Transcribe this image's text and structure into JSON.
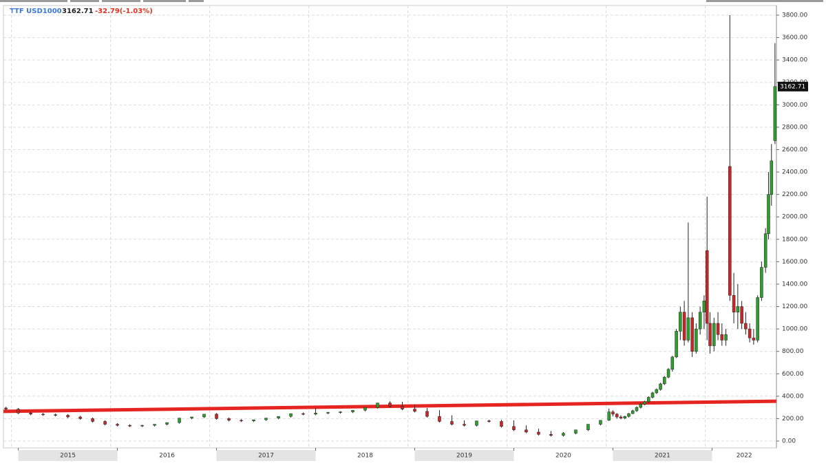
{
  "chart_data": {
    "type": "candlestick",
    "symbol": "TTF USD1000",
    "change": "-32.79(-1.03%)",
    "xlim": [
      2014.85,
      2022.65
    ],
    "xticks": [
      2015,
      2016,
      2017,
      2018,
      2019,
      2020,
      2021,
      2022
    ],
    "ylim": [
      0,
      3800
    ],
    "yticks": [
      {
        "value": 0,
        "label": "0.00"
      },
      {
        "value": 200,
        "label": "200.00"
      },
      {
        "value": 400,
        "label": "400.00"
      },
      {
        "value": 600,
        "label": "600.00"
      },
      {
        "value": 800,
        "label": "800.00"
      },
      {
        "value": 1000,
        "label": "1000.00"
      },
      {
        "value": 1200,
        "label": "1200.00"
      },
      {
        "value": 1400,
        "label": "1400.00"
      },
      {
        "value": 1600,
        "label": "1600.00"
      },
      {
        "value": 1800,
        "label": "1800.00"
      },
      {
        "value": 2000,
        "label": "2000.00"
      },
      {
        "value": 2200,
        "label": "2200.00"
      },
      {
        "value": 2400,
        "label": "2400.00"
      },
      {
        "value": 2600,
        "label": "2600.00"
      },
      {
        "value": 2800,
        "label": "2800.00"
      },
      {
        "value": 3000,
        "label": "3000.00"
      },
      {
        "value": 3200,
        "label": "3200.00"
      },
      {
        "value": 3400,
        "label": "3400.00"
      },
      {
        "value": 3600,
        "label": "3600.00"
      },
      {
        "value": 3800,
        "label": "3800.00"
      }
    ],
    "grid": true,
    "up_color": "#2f9e2f",
    "down_color": "#c62828",
    "candles": {
      "x": [
        2014.875,
        2015.0,
        2015.125,
        2015.25,
        2015.375,
        2015.5,
        2015.625,
        2015.75,
        2015.875,
        2016.0,
        2016.125,
        2016.25,
        2016.375,
        2016.5,
        2016.625,
        2016.75,
        2016.875,
        2017.0,
        2017.125,
        2017.25,
        2017.375,
        2017.5,
        2017.625,
        2017.75,
        2017.875,
        2018.0,
        2018.125,
        2018.25,
        2018.375,
        2018.5,
        2018.625,
        2018.75,
        2018.875,
        2019.0,
        2019.125,
        2019.25,
        2019.375,
        2019.5,
        2019.625,
        2019.75,
        2019.875,
        2020.0,
        2020.125,
        2020.25,
        2020.375,
        2020.5,
        2020.625,
        2020.75,
        2020.875,
        2020.96,
        2021.0,
        2021.04,
        2021.08,
        2021.12,
        2021.16,
        2021.2,
        2021.24,
        2021.28,
        2021.32,
        2021.36,
        2021.4,
        2021.44,
        2021.48,
        2021.52,
        2021.56,
        2021.6,
        2021.64,
        2021.68,
        2021.72,
        2021.76,
        2021.8,
        2021.84,
        2021.88,
        2021.92,
        2021.95,
        2021.98,
        2022.02,
        2022.06,
        2022.1,
        2022.14,
        2022.18,
        2022.22,
        2022.26,
        2022.3,
        2022.34,
        2022.38,
        2022.42,
        2022.46,
        2022.5,
        2022.54,
        2022.57,
        2022.6,
        2022.635
      ],
      "open": [
        295,
        285,
        250,
        240,
        235,
        230,
        215,
        200,
        175,
        150,
        140,
        135,
        140,
        150,
        165,
        205,
        215,
        240,
        200,
        185,
        180,
        190,
        205,
        220,
        245,
        240,
        250,
        255,
        260,
        275,
        300,
        340,
        310,
        285,
        265,
        220,
        175,
        150,
        140,
        180,
        175,
        130,
        100,
        80,
        60,
        50,
        70,
        100,
        150,
        185,
        260,
        240,
        215,
        205,
        220,
        245,
        270,
        300,
        330,
        350,
        390,
        430,
        460,
        510,
        570,
        640,
        750,
        980,
        1150,
        900,
        1100,
        800,
        1000,
        1150,
        1700,
        1050,
        850,
        1050,
        950,
        900,
        2450,
        1300,
        1150,
        1200,
        1050,
        1000,
        920,
        900,
        1280,
        1550,
        1850,
        2200,
        2680
      ],
      "high": [
        305,
        295,
        260,
        250,
        245,
        240,
        225,
        210,
        185,
        160,
        150,
        145,
        150,
        160,
        175,
        215,
        225,
        250,
        210,
        195,
        190,
        200,
        215,
        230,
        255,
        295,
        260,
        265,
        270,
        285,
        310,
        355,
        350,
        320,
        295,
        275,
        230,
        185,
        160,
        190,
        190,
        185,
        140,
        110,
        90,
        80,
        80,
        110,
        160,
        290,
        275,
        250,
        230,
        225,
        250,
        280,
        310,
        340,
        360,
        400,
        440,
        470,
        520,
        580,
        650,
        760,
        1000,
        1200,
        1250,
        1950,
        1150,
        1050,
        1200,
        1300,
        2180,
        1150,
        1100,
        1150,
        1050,
        1000,
        3800,
        1500,
        1400,
        1250,
        1150,
        1050,
        1000,
        1300,
        1600,
        1900,
        2400,
        2650,
        3550
      ],
      "low": [
        275,
        240,
        230,
        225,
        220,
        205,
        190,
        165,
        140,
        130,
        125,
        125,
        130,
        140,
        155,
        195,
        205,
        190,
        175,
        170,
        170,
        180,
        195,
        210,
        230,
        230,
        240,
        245,
        250,
        265,
        290,
        300,
        275,
        255,
        210,
        165,
        140,
        130,
        130,
        165,
        120,
        90,
        70,
        50,
        40,
        40,
        60,
        90,
        140,
        180,
        220,
        200,
        195,
        195,
        210,
        240,
        260,
        290,
        320,
        340,
        380,
        420,
        450,
        500,
        560,
        620,
        740,
        900,
        850,
        880,
        750,
        780,
        950,
        1000,
        900,
        780,
        800,
        900,
        850,
        850,
        1250,
        1050,
        1000,
        1000,
        950,
        880,
        860,
        880,
        1250,
        1500,
        1800,
        2100,
        2650
      ],
      "close": [
        285,
        250,
        240,
        235,
        230,
        215,
        200,
        175,
        150,
        140,
        135,
        140,
        150,
        165,
        205,
        215,
        240,
        200,
        185,
        180,
        190,
        205,
        220,
        245,
        240,
        250,
        255,
        260,
        275,
        300,
        340,
        310,
        285,
        265,
        220,
        175,
        150,
        140,
        180,
        175,
        130,
        100,
        80,
        60,
        50,
        70,
        100,
        150,
        185,
        260,
        240,
        215,
        205,
        220,
        245,
        270,
        300,
        330,
        350,
        390,
        430,
        460,
        510,
        570,
        640,
        750,
        980,
        1150,
        900,
        1100,
        800,
        1000,
        1150,
        1250,
        1050,
        850,
        1050,
        950,
        900,
        950,
        1300,
        1150,
        1200,
        1050,
        1000,
        920,
        900,
        1280,
        1550,
        1850,
        2200,
        2500,
        3162.71
      ]
    },
    "trendline": {
      "x": [
        2014.85,
        2022.65
      ],
      "values": [
        265,
        355
      ],
      "color": "#e52521"
    }
  }
}
